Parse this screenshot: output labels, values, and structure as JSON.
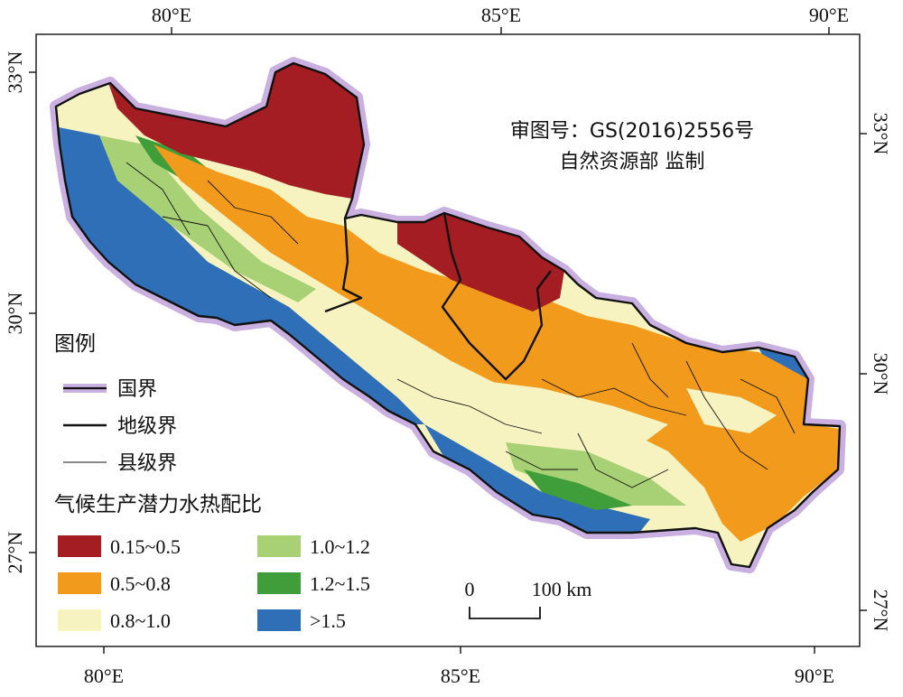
{
  "map": {
    "top_ticks": [
      "80°E",
      "85°E",
      "90°E"
    ],
    "bottom_ticks": [
      "80°E",
      "85°E",
      "90°E"
    ],
    "left_ticks": [
      "33°N",
      "30°N",
      "27°N"
    ],
    "right_ticks": [
      "33°N",
      "30°N",
      "27°N"
    ],
    "approval_line1": "审图号：GS(2016)2556号",
    "approval_line2": "自然资源部 监制",
    "scale_bar": {
      "zero": "0",
      "end": "100 km"
    }
  },
  "legend": {
    "title": "图例",
    "boundaries": [
      {
        "label": "国界"
      },
      {
        "label": "地级界"
      },
      {
        "label": "县级界"
      }
    ],
    "classes_title": "气候生产潜力水热配比",
    "classes": [
      {
        "label": "0.15~0.5",
        "color": "#a31d22"
      },
      {
        "label": "0.5~0.8",
        "color": "#f29a1b"
      },
      {
        "label": "0.8~1.0",
        "color": "#f7f3c0"
      },
      {
        "label": "1.0~1.2",
        "color": "#a7d174"
      },
      {
        "label": "1.2~1.5",
        "color": "#3f9e3a"
      },
      {
        "label": ">1.5",
        "color": "#2f6fb7"
      }
    ],
    "colors": {
      "national_border": "#b79ad3"
    }
  }
}
